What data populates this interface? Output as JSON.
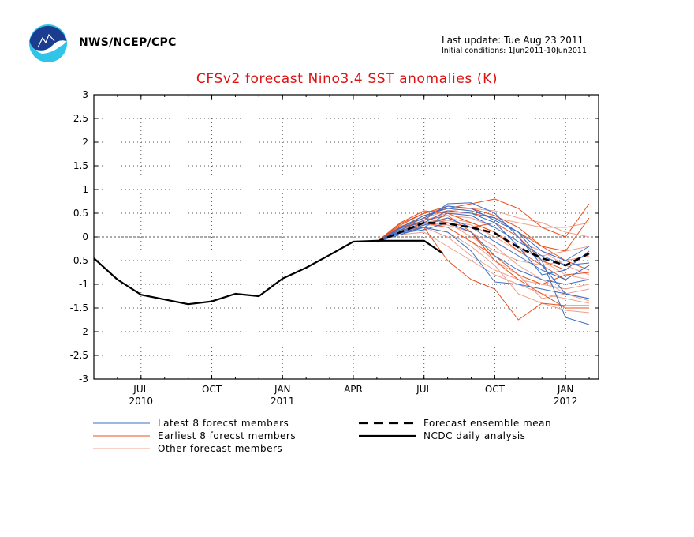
{
  "header": {
    "agency": "NWS/NCEP/CPC",
    "last_update": "Last update: Tue Aug 23 2011",
    "initial_conditions": "Initial conditions: 1Jun2011-10Jun2011"
  },
  "colors": {
    "latest": "#3a6fc8",
    "earliest": "#e8501c",
    "other": "#f0a08c",
    "observed": "#000000",
    "title": "#e01010"
  },
  "chart_data": {
    "type": "line",
    "title": "CFSv2 forecast Nino3.4 SST anomalies (K)",
    "xlabel": "",
    "ylabel": "",
    "ylim": [
      -3,
      3
    ],
    "yticks": [
      "3",
      "2.5",
      "2",
      "1.5",
      "1",
      "0.5",
      "0",
      "-0.5",
      "-1",
      "-1.5",
      "-2",
      "-2.5",
      "-3"
    ],
    "x_axis": [
      "2010-05",
      "2010-06",
      "2010-07",
      "2010-08",
      "2010-09",
      "2010-10",
      "2010-11",
      "2010-12",
      "2011-01",
      "2011-02",
      "2011-03",
      "2011-04",
      "2011-05",
      "2011-06",
      "2011-07",
      "2011-08",
      "2011-09",
      "2011-10",
      "2011-11",
      "2011-12",
      "2012-01",
      "2012-02"
    ],
    "xticks": [
      {
        "x": "2010-07",
        "label": "JUL",
        "year": "2010"
      },
      {
        "x": "2010-10",
        "label": "OCT",
        "year": ""
      },
      {
        "x": "2011-01",
        "label": "JAN",
        "year": "2011"
      },
      {
        "x": "2011-04",
        "label": "APR",
        "year": ""
      },
      {
        "x": "2011-07",
        "label": "JUL",
        "year": ""
      },
      {
        "x": "2011-10",
        "label": "OCT",
        "year": ""
      },
      {
        "x": "2012-01",
        "label": "JAN",
        "year": "2012"
      }
    ],
    "grid": true,
    "zero_line": true,
    "legend": {
      "placement": "bottom",
      "items": [
        {
          "key": "latest",
          "label": "Latest 8 forecst members",
          "style": "thin-blue"
        },
        {
          "key": "earliest",
          "label": "Earliest 8 forecst members",
          "style": "thin-orange"
        },
        {
          "key": "other",
          "label": "Other forecast members",
          "style": "thin-pink"
        },
        {
          "key": "mean",
          "label": "Forecast ensemble mean",
          "style": "thick-dashed"
        },
        {
          "key": "ncdc",
          "label": "NCDC daily analysis",
          "style": "thick-solid"
        }
      ]
    },
    "series": [
      {
        "key": "ncdc",
        "x": [
          "2010-05",
          "2010-06",
          "2010-07",
          "2010-08",
          "2010-09",
          "2010-10",
          "2010-11",
          "2010-12",
          "2011-01",
          "2011-02",
          "2011-03",
          "2011-04",
          "2011-05",
          "2011-06",
          "2011-07",
          "2011-07-25"
        ],
        "y": [
          -0.45,
          -0.9,
          -1.22,
          -1.32,
          -1.42,
          -1.36,
          -1.2,
          -1.25,
          -0.88,
          -0.65,
          -0.38,
          -0.1,
          -0.08,
          -0.08,
          -0.08,
          -0.35
        ]
      },
      {
        "key": "mean",
        "x": [
          "2011-05",
          "2011-06",
          "2011-07",
          "2011-08",
          "2011-09",
          "2011-10",
          "2011-11",
          "2011-12",
          "2012-01",
          "2012-02"
        ],
        "y": [
          -0.1,
          0.1,
          0.3,
          0.28,
          0.2,
          0.08,
          -0.22,
          -0.45,
          -0.6,
          -0.35
        ]
      },
      {
        "key": "latest",
        "x": [
          "2011-05",
          "2011-06",
          "2011-07",
          "2011-08",
          "2011-09",
          "2011-10",
          "2011-11",
          "2011-12",
          "2012-01",
          "2012-02"
        ],
        "y": [
          -0.1,
          0.2,
          0.45,
          0.6,
          0.55,
          0.4,
          0.1,
          -0.5,
          -1.7,
          -1.85
        ]
      },
      {
        "key": "latest",
        "x": [
          "2011-05",
          "2011-06",
          "2011-07",
          "2011-08",
          "2011-09",
          "2011-10",
          "2011-11",
          "2011-12",
          "2012-01",
          "2012-02"
        ],
        "y": [
          -0.1,
          0.15,
          0.35,
          0.7,
          0.72,
          0.5,
          0.0,
          -0.6,
          -1.2,
          -1.3
        ]
      },
      {
        "key": "latest",
        "x": [
          "2011-05",
          "2011-06",
          "2011-07",
          "2011-08",
          "2011-09",
          "2011-10",
          "2011-11",
          "2011-12",
          "2012-01",
          "2012-02"
        ],
        "y": [
          -0.1,
          0.1,
          0.25,
          0.4,
          0.2,
          -0.1,
          -0.4,
          -0.7,
          -0.9,
          -0.6
        ]
      },
      {
        "key": "latest",
        "x": [
          "2011-05",
          "2011-06",
          "2011-07",
          "2011-08",
          "2011-09",
          "2011-10",
          "2011-11",
          "2011-12",
          "2012-01",
          "2012-02"
        ],
        "y": [
          -0.1,
          0.05,
          0.2,
          0.1,
          -0.3,
          -0.95,
          -1.0,
          -1.1,
          -1.2,
          -1.3
        ]
      },
      {
        "key": "latest",
        "x": [
          "2011-05",
          "2011-06",
          "2011-07",
          "2011-08",
          "2011-09",
          "2011-10",
          "2011-11",
          "2011-12",
          "2012-01",
          "2012-02"
        ],
        "y": [
          -0.1,
          0.12,
          0.3,
          0.55,
          0.5,
          0.3,
          -0.2,
          -0.8,
          -0.7,
          -0.3
        ]
      },
      {
        "key": "latest",
        "x": [
          "2011-05",
          "2011-06",
          "2011-07",
          "2011-08",
          "2011-09",
          "2011-10",
          "2011-11",
          "2011-12",
          "2012-01",
          "2012-02"
        ],
        "y": [
          -0.1,
          0.18,
          0.4,
          0.65,
          0.6,
          0.35,
          0.1,
          -0.3,
          -0.5,
          -0.2
        ]
      },
      {
        "key": "latest",
        "x": [
          "2011-05",
          "2011-06",
          "2011-07",
          "2011-08",
          "2011-09",
          "2011-10",
          "2011-11",
          "2011-12",
          "2012-01",
          "2012-02"
        ],
        "y": [
          -0.1,
          0.08,
          0.15,
          0.3,
          0.1,
          -0.4,
          -0.7,
          -0.9,
          -1.0,
          -0.9
        ]
      },
      {
        "key": "latest",
        "x": [
          "2011-05",
          "2011-06",
          "2011-07",
          "2011-08",
          "2011-09",
          "2011-10",
          "2011-11",
          "2011-12",
          "2012-01",
          "2012-02"
        ],
        "y": [
          -0.1,
          0.1,
          0.2,
          0.5,
          0.45,
          0.2,
          -0.1,
          -0.4,
          -0.6,
          -0.55
        ]
      },
      {
        "key": "earliest",
        "x": [
          "2011-05",
          "2011-06",
          "2011-07",
          "2011-08",
          "2011-09",
          "2011-10",
          "2011-11",
          "2011-12",
          "2012-01",
          "2012-02"
        ],
        "y": [
          -0.1,
          0.25,
          0.5,
          0.6,
          0.7,
          0.8,
          0.6,
          0.2,
          0.0,
          0.7
        ]
      },
      {
        "key": "earliest",
        "x": [
          "2011-05",
          "2011-06",
          "2011-07",
          "2011-08",
          "2011-09",
          "2011-10",
          "2011-11",
          "2011-12",
          "2012-01",
          "2012-02"
        ],
        "y": [
          -0.1,
          0.2,
          0.45,
          0.55,
          0.5,
          0.4,
          0.1,
          -0.2,
          -0.3,
          0.4
        ]
      },
      {
        "key": "earliest",
        "x": [
          "2011-05",
          "2011-06",
          "2011-07",
          "2011-08",
          "2011-09",
          "2011-10",
          "2011-11",
          "2011-12",
          "2012-01",
          "2012-02"
        ],
        "y": [
          -0.1,
          0.3,
          0.55,
          0.5,
          0.3,
          0.1,
          -0.3,
          -0.6,
          -0.9,
          -0.6
        ]
      },
      {
        "key": "earliest",
        "x": [
          "2011-05",
          "2011-06",
          "2011-07",
          "2011-08",
          "2011-09",
          "2011-10",
          "2011-11",
          "2011-12",
          "2012-01",
          "2012-02"
        ],
        "y": [
          -0.1,
          0.15,
          0.2,
          -0.5,
          -0.9,
          -1.1,
          -1.75,
          -1.4,
          -1.45,
          -1.45
        ]
      },
      {
        "key": "earliest",
        "x": [
          "2011-05",
          "2011-06",
          "2011-07",
          "2011-08",
          "2011-09",
          "2011-10",
          "2011-11",
          "2011-12",
          "2012-01",
          "2012-02"
        ],
        "y": [
          -0.1,
          0.22,
          0.4,
          0.3,
          0.2,
          0.3,
          0.0,
          -0.5,
          -0.7,
          -0.3
        ]
      },
      {
        "key": "earliest",
        "x": [
          "2011-05",
          "2011-06",
          "2011-07",
          "2011-08",
          "2011-09",
          "2011-10",
          "2011-11",
          "2011-12",
          "2012-01",
          "2012-02"
        ],
        "y": [
          -0.1,
          0.18,
          0.35,
          0.45,
          0.1,
          -0.5,
          -0.9,
          -1.2,
          -1.5,
          -1.5
        ]
      },
      {
        "key": "earliest",
        "x": [
          "2011-05",
          "2011-06",
          "2011-07",
          "2011-08",
          "2011-09",
          "2011-10",
          "2011-11",
          "2011-12",
          "2012-01",
          "2012-02"
        ],
        "y": [
          -0.1,
          0.28,
          0.5,
          0.65,
          0.6,
          0.45,
          0.2,
          -0.2,
          -0.5,
          -0.7
        ]
      },
      {
        "key": "earliest",
        "x": [
          "2011-05",
          "2011-06",
          "2011-07",
          "2011-08",
          "2011-09",
          "2011-10",
          "2011-11",
          "2011-12",
          "2012-01",
          "2012-02"
        ],
        "y": [
          -0.1,
          0.2,
          0.3,
          0.2,
          -0.1,
          -0.4,
          -0.8,
          -1.0,
          -0.8,
          -0.75
        ]
      },
      {
        "key": "other",
        "x": [
          "2011-05",
          "2011-06",
          "2011-07",
          "2011-08",
          "2011-09",
          "2011-10",
          "2011-11",
          "2011-12",
          "2012-01",
          "2012-02"
        ],
        "y": [
          -0.1,
          0.1,
          0.3,
          0.4,
          0.3,
          0.1,
          -0.2,
          -0.5,
          -0.8,
          -0.9
        ]
      },
      {
        "key": "other",
        "x": [
          "2011-05",
          "2011-06",
          "2011-07",
          "2011-08",
          "2011-09",
          "2011-10",
          "2011-11",
          "2011-12",
          "2012-01",
          "2012-02"
        ],
        "y": [
          -0.1,
          0.12,
          0.35,
          0.5,
          0.5,
          0.4,
          0.3,
          0.2,
          0.2,
          0.3
        ]
      },
      {
        "key": "other",
        "x": [
          "2011-05",
          "2011-06",
          "2011-07",
          "2011-08",
          "2011-09",
          "2011-10",
          "2011-11",
          "2011-12",
          "2012-01",
          "2012-02"
        ],
        "y": [
          -0.1,
          0.05,
          0.1,
          -0.2,
          -0.5,
          -0.8,
          -1.0,
          -1.2,
          -1.3,
          -1.4
        ]
      },
      {
        "key": "other",
        "x": [
          "2011-05",
          "2011-06",
          "2011-07",
          "2011-08",
          "2011-09",
          "2011-10",
          "2011-11",
          "2011-12",
          "2012-01",
          "2012-02"
        ],
        "y": [
          -0.1,
          0.15,
          0.25,
          0.3,
          0.0,
          -0.3,
          -0.5,
          -0.6,
          -0.5,
          -0.4
        ]
      },
      {
        "key": "other",
        "x": [
          "2011-05",
          "2011-06",
          "2011-07",
          "2011-08",
          "2011-09",
          "2011-10",
          "2011-11",
          "2011-12",
          "2012-01",
          "2012-02"
        ],
        "y": [
          -0.1,
          0.08,
          0.2,
          0.1,
          -0.2,
          -0.6,
          -1.2,
          -1.4,
          -1.55,
          -1.6
        ]
      },
      {
        "key": "other",
        "x": [
          "2011-05",
          "2011-06",
          "2011-07",
          "2011-08",
          "2011-09",
          "2011-10",
          "2011-11",
          "2011-12",
          "2012-01",
          "2012-02"
        ],
        "y": [
          -0.1,
          0.2,
          0.4,
          0.55,
          0.6,
          0.55,
          0.4,
          0.3,
          0.1,
          0.0
        ]
      },
      {
        "key": "other",
        "x": [
          "2011-05",
          "2011-06",
          "2011-07",
          "2011-08",
          "2011-09",
          "2011-10",
          "2011-11",
          "2011-12",
          "2012-01",
          "2012-02"
        ],
        "y": [
          -0.1,
          0.1,
          0.2,
          0.0,
          -0.4,
          -0.7,
          -0.9,
          -1.0,
          -1.1,
          -1.0
        ]
      },
      {
        "key": "other",
        "x": [
          "2011-05",
          "2011-06",
          "2011-07",
          "2011-08",
          "2011-09",
          "2011-10",
          "2011-11",
          "2011-12",
          "2012-01",
          "2012-02"
        ],
        "y": [
          -0.1,
          0.18,
          0.3,
          0.35,
          0.25,
          0.0,
          -0.3,
          -0.4,
          -0.3,
          -0.2
        ]
      },
      {
        "key": "other",
        "x": [
          "2011-05",
          "2011-06",
          "2011-07",
          "2011-08",
          "2011-09",
          "2011-10",
          "2011-11",
          "2011-12",
          "2012-01",
          "2012-02"
        ],
        "y": [
          -0.1,
          0.12,
          0.28,
          0.2,
          -0.1,
          -0.5,
          -0.8,
          -1.3,
          -1.2,
          -1.1
        ]
      },
      {
        "key": "other",
        "x": [
          "2011-05",
          "2011-06",
          "2011-07",
          "2011-08",
          "2011-09",
          "2011-10",
          "2011-11",
          "2011-12",
          "2012-01",
          "2012-02"
        ],
        "y": [
          -0.1,
          0.15,
          0.35,
          0.45,
          0.4,
          0.2,
          -0.1,
          -0.3,
          -0.6,
          -0.8
        ]
      },
      {
        "key": "other",
        "x": [
          "2011-05",
          "2011-06",
          "2011-07",
          "2011-08",
          "2011-09",
          "2011-10",
          "2011-11",
          "2011-12",
          "2012-01",
          "2012-02"
        ],
        "y": [
          -0.1,
          0.1,
          0.25,
          0.25,
          0.1,
          -0.2,
          -0.6,
          -0.9,
          -1.2,
          -1.35
        ]
      }
    ]
  }
}
